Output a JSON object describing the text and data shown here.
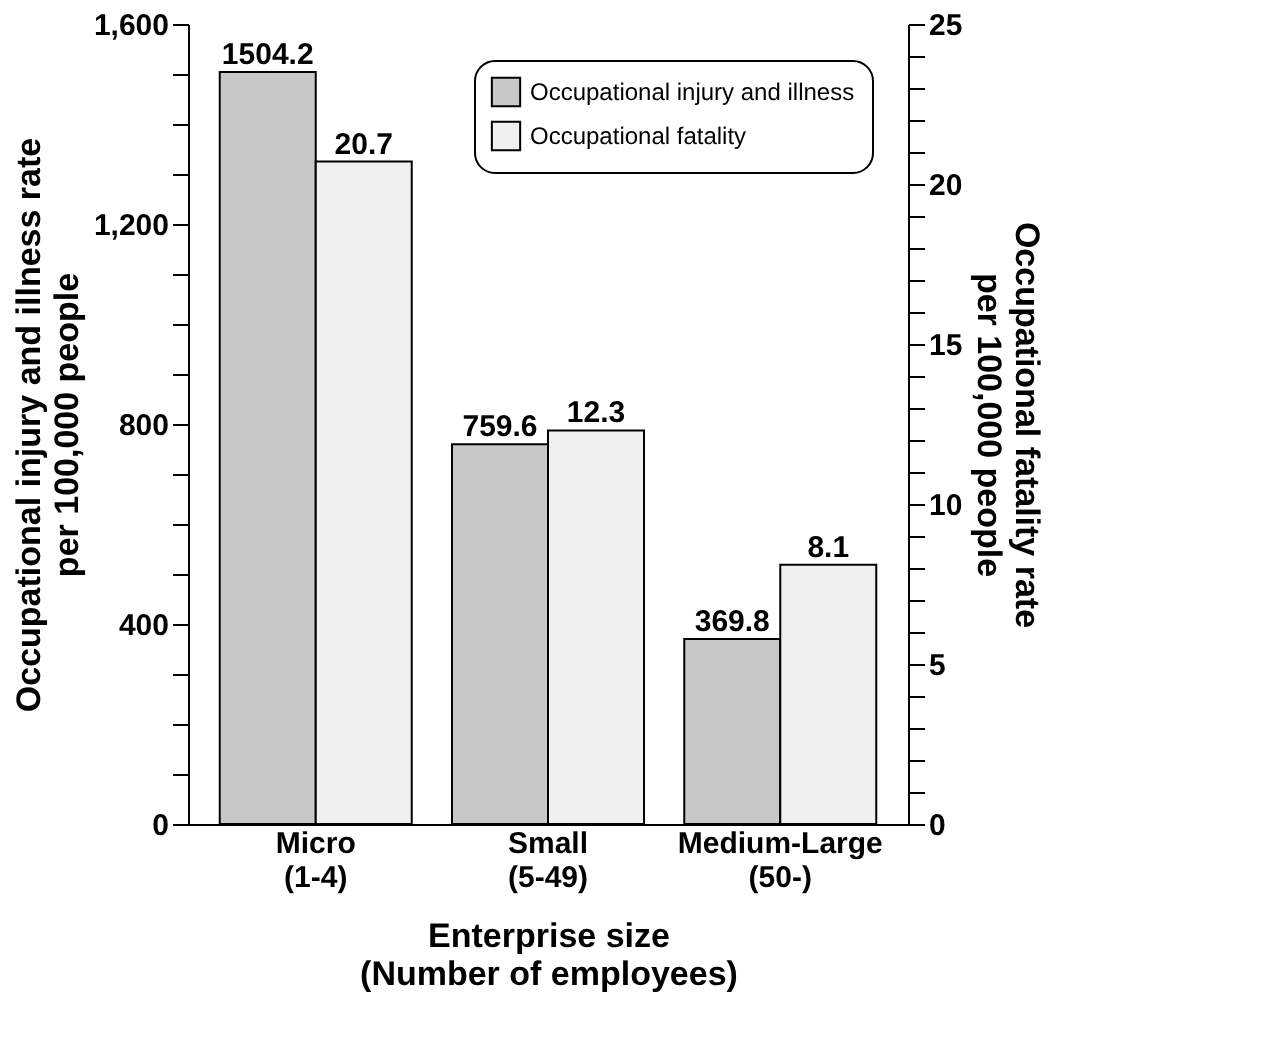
{
  "chart_data": {
    "type": "bar",
    "categories": [
      "Micro\n(1-4)",
      "Small\n(5-49)",
      "Medium-Large\n(50-)"
    ],
    "xlabel": "Enterprise size\n(Number of employees)",
    "ylabel": "Occupational injury and illness rate\nper 100,000 people",
    "y2label": "Occupational fatality rate\nper 100,000 people",
    "series": [
      {
        "name": "Occupational injury and illness",
        "color": "#c8c8c8",
        "values": [
          1504.2,
          759.6,
          369.8
        ]
      },
      {
        "name": "Occupational fatality",
        "color": "#f0f0f0",
        "values": [
          20.7,
          12.3,
          8.1
        ],
        "axis": "y2"
      }
    ],
    "ylim": [
      0,
      1600
    ],
    "yticks": [
      0,
      {
        "value": 100,
        "label": null
      },
      {
        "value": 200,
        "label": null
      },
      {
        "value": 300,
        "label": null
      },
      400,
      {
        "value": 500,
        "label": null
      },
      {
        "value": 600,
        "label": null
      },
      {
        "value": 700,
        "label": null
      },
      800,
      {
        "value": 900,
        "label": null
      },
      {
        "value": 1000,
        "label": null
      },
      {
        "value": 1100,
        "label": null
      },
      {
        "value": 1200,
        "label": "1,200"
      },
      {
        "value": 1300,
        "label": null
      },
      {
        "value": 1400,
        "label": null
      },
      {
        "value": 1500,
        "label": null
      },
      {
        "value": 1600,
        "label": "1,600"
      }
    ],
    "y2lim": [
      0,
      25
    ],
    "y2ticks": [
      0,
      {
        "value": 1,
        "label": null
      },
      {
        "value": 2,
        "label": null
      },
      {
        "value": 3,
        "label": null
      },
      {
        "value": 4,
        "label": null
      },
      5,
      {
        "value": 6,
        "label": null
      },
      {
        "value": 7,
        "label": null
      },
      {
        "value": 8,
        "label": null
      },
      {
        "value": 9,
        "label": null
      },
      10,
      {
        "value": 11,
        "label": null
      },
      {
        "value": 12,
        "label": null
      },
      {
        "value": 13,
        "label": null
      },
      {
        "value": 14,
        "label": null
      },
      15,
      {
        "value": 16,
        "label": null
      },
      {
        "value": 17,
        "label": null
      },
      {
        "value": 18,
        "label": null
      },
      {
        "value": 19,
        "label": null
      },
      20,
      {
        "value": 21,
        "label": null
      },
      {
        "value": 22,
        "label": null
      },
      {
        "value": 23,
        "label": null
      },
      {
        "value": 24,
        "label": null
      },
      25
    ],
    "data_labels": true,
    "legend": "top right",
    "grid": false
  }
}
